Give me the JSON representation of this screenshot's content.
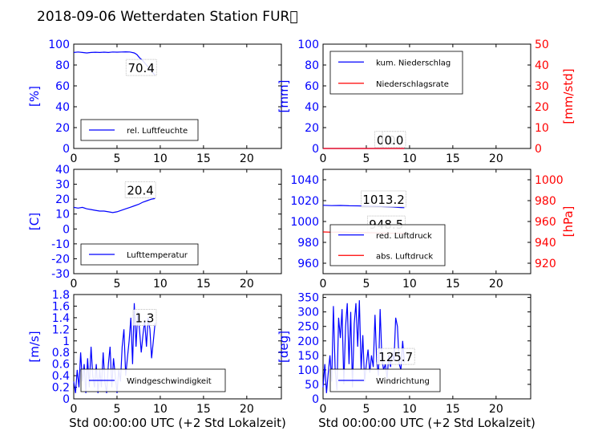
{
  "figure": {
    "title": "2018-09-06 Wetterdaten Station FUR\u0000"
  },
  "chart_data": [
    {
      "type": "line",
      "panel": "top-left",
      "ylabel": "[%]",
      "xlim": [
        0,
        24
      ],
      "ylim": [
        0,
        100
      ],
      "xticks": [
        0,
        5,
        10,
        15,
        20
      ],
      "yticks": [
        0,
        20,
        40,
        60,
        80,
        100
      ],
      "axis_color": "#0000ff",
      "legend_placement": "lower-left",
      "series": [
        {
          "name": "rel. Luftfeuchte",
          "color": "#0000ff",
          "x": [
            0,
            0.5,
            1,
            1.5,
            2,
            2.5,
            3,
            3.5,
            4,
            4.5,
            5,
            5.5,
            6,
            6.5,
            7,
            7.3,
            7.6,
            8,
            8.4,
            8.8,
            9.2,
            9.4
          ],
          "y": [
            92,
            92.5,
            92,
            91.5,
            92,
            92.2,
            92,
            92.3,
            92,
            92.5,
            92.3,
            92.5,
            92.6,
            92.5,
            91.5,
            90,
            87,
            84,
            80,
            76,
            72,
            70.4
          ]
        }
      ],
      "annotations": [
        {
          "text": "70.4",
          "x": 7.8,
          "y": 73
        }
      ]
    },
    {
      "type": "line",
      "panel": "top-right",
      "ylabel": "[mm]",
      "ylabel_right": "[mm/std]",
      "xlim": [
        0,
        24
      ],
      "ylim": [
        0,
        100
      ],
      "ylim_right": [
        0,
        50
      ],
      "xticks": [
        0,
        5,
        10,
        15,
        20
      ],
      "yticks": [
        0,
        20,
        40,
        60,
        80,
        100
      ],
      "yticks_right": [
        0,
        10,
        20,
        30,
        40,
        50
      ],
      "axis_color": "#0000ff",
      "axis_color_right": "#ff0000",
      "legend_placement": "upper-left",
      "series": [
        {
          "name": "kum. Niederschlag",
          "color": "#0000ff",
          "axis": "left",
          "x": [
            0,
            9.4
          ],
          "y": [
            0,
            0
          ]
        },
        {
          "name": "Niederschlagsrate",
          "color": "#ff0000",
          "axis": "right",
          "x": [
            0,
            9.4
          ],
          "y": [
            0,
            0
          ]
        }
      ],
      "annotations": [
        {
          "text": "0.0",
          "x": 7.3,
          "y": 4,
          "axis": "left"
        },
        {
          "text": "0.0",
          "x": 8.2,
          "y": 2,
          "axis": "right"
        }
      ]
    },
    {
      "type": "line",
      "panel": "middle-left",
      "ylabel": "[C]",
      "xlim": [
        0,
        24
      ],
      "ylim": [
        -30,
        40
      ],
      "xticks": [
        0,
        5,
        10,
        15,
        20
      ],
      "yticks": [
        -30,
        -20,
        -10,
        0,
        10,
        20,
        30,
        40
      ],
      "axis_color": "#0000ff",
      "legend_placement": "lower-left",
      "series": [
        {
          "name": "Lufttemperatur",
          "color": "#0000ff",
          "x": [
            0,
            0.5,
            1,
            1.5,
            2,
            2.5,
            3,
            3.5,
            4,
            4.5,
            5,
            5.5,
            6,
            6.5,
            7,
            7.5,
            8,
            8.5,
            9,
            9.4
          ],
          "y": [
            14.5,
            14,
            14.5,
            13.5,
            13,
            12.5,
            12,
            12,
            11.5,
            11,
            11.5,
            12.5,
            13.5,
            14.5,
            15.5,
            16.5,
            18,
            19,
            20,
            20.4
          ]
        }
      ],
      "annotations": [
        {
          "text": "20.4",
          "x": 7.7,
          "y": 23
        }
      ]
    },
    {
      "type": "line",
      "panel": "middle-right",
      "ylabel_right": "[hPa]",
      "xlim": [
        0,
        24
      ],
      "ylim": [
        950,
        1050
      ],
      "ylim_right": [
        910,
        1010
      ],
      "xticks": [
        0,
        5,
        10,
        15,
        20
      ],
      "yticks": [
        960,
        980,
        1000,
        1020,
        1040
      ],
      "yticks_right": [
        920,
        940,
        960,
        980,
        1000
      ],
      "axis_color": "#0000ff",
      "axis_color_right": "#ff0000",
      "legend_placement": "lower-right",
      "series": [
        {
          "name": "red. Luftdruck",
          "color": "#0000ff",
          "axis": "left",
          "x": [
            0,
            1,
            2,
            3,
            4,
            5,
            6,
            7,
            8,
            9,
            9.4
          ],
          "y": [
            1015.5,
            1015.2,
            1015.4,
            1015.1,
            1015,
            1014.8,
            1014.6,
            1014.2,
            1013.9,
            1013.4,
            1013.2
          ]
        },
        {
          "name": "abs. Luftdruck",
          "color": "#ff0000",
          "axis": "right",
          "x": [
            0,
            1,
            2,
            3,
            4,
            5,
            6,
            7,
            8,
            9,
            9.4
          ],
          "y": [
            950,
            949.8,
            949.9,
            949.6,
            949.5,
            949.3,
            949.1,
            948.9,
            948.7,
            948.6,
            948.5
          ]
        }
      ],
      "annotations": [
        {
          "text": "1013.2",
          "x": 7.0,
          "y": 1017,
          "axis": "left"
        },
        {
          "text": "948.5",
          "x": 7.3,
          "y": 953,
          "axis": "right"
        }
      ]
    },
    {
      "type": "line",
      "panel": "bottom-left",
      "ylabel": "[m/s]",
      "xlabel": "Std 00:00:00 UTC (+2 Std Lokalzeit)",
      "xlim": [
        0,
        24
      ],
      "ylim": [
        0,
        1.8
      ],
      "xticks": [
        0,
        5,
        10,
        15,
        20
      ],
      "yticks": [
        0,
        0.2,
        0.4,
        0.6,
        0.8,
        1.0,
        1.2,
        1.4,
        1.6,
        1.8
      ],
      "axis_color": "#0000ff",
      "legend_placement": "lower-center",
      "series": [
        {
          "name": "Windgeschwindigkeit",
          "color": "#0000ff",
          "x": [
            0,
            0.2,
            0.4,
            0.6,
            0.8,
            1.0,
            1.2,
            1.4,
            1.6,
            1.8,
            2.0,
            2.2,
            2.4,
            2.6,
            2.8,
            3.0,
            3.2,
            3.4,
            3.6,
            3.8,
            4.0,
            4.2,
            4.4,
            4.6,
            4.8,
            5.0,
            5.2,
            5.4,
            5.6,
            5.8,
            6.0,
            6.2,
            6.4,
            6.6,
            6.8,
            7.0,
            7.2,
            7.4,
            7.6,
            7.8,
            8.0,
            8.2,
            8.4,
            8.6,
            8.8,
            9.0,
            9.2,
            9.4
          ],
          "y": [
            0.3,
            0.1,
            0.5,
            0.2,
            0.8,
            0.3,
            0.6,
            0.1,
            0.7,
            0.2,
            0.9,
            0.4,
            0.2,
            0.6,
            0.1,
            0.5,
            0.2,
            0.8,
            0.3,
            0.1,
            0.6,
            0.9,
            0.2,
            0.7,
            0.4,
            0.1,
            0.5,
            0.3,
            0.9,
            1.2,
            0.4,
            0.7,
            1.0,
            1.4,
            0.6,
            1.65,
            0.9,
            1.5,
            1.2,
            0.8,
            1.1,
            1.35,
            0.9,
            1.4,
            1.2,
            0.7,
            1.0,
            1.3
          ]
        }
      ],
      "annotations": [
        {
          "text": "1.3",
          "x": 8.2,
          "y": 1.32
        }
      ]
    },
    {
      "type": "line",
      "panel": "bottom-right",
      "ylabel": "[deg]",
      "xlabel": "Std 00:00:00 UTC (+2 Std Lokalzeit)",
      "xlim": [
        0,
        24
      ],
      "ylim": [
        0,
        360
      ],
      "xticks": [
        0,
        5,
        10,
        15,
        20
      ],
      "yticks": [
        0,
        50,
        100,
        150,
        200,
        250,
        300,
        350
      ],
      "axis_color": "#0000ff",
      "legend_placement": "lower-left",
      "series": [
        {
          "name": "Windrichtung",
          "color": "#0000ff",
          "x": [
            0,
            0.2,
            0.4,
            0.6,
            0.8,
            1.0,
            1.2,
            1.4,
            1.6,
            1.8,
            2.0,
            2.2,
            2.4,
            2.6,
            2.8,
            3.0,
            3.2,
            3.4,
            3.6,
            3.8,
            4.0,
            4.2,
            4.4,
            4.6,
            4.8,
            5.0,
            5.2,
            5.4,
            5.6,
            5.8,
            6.0,
            6.2,
            6.4,
            6.6,
            6.8,
            7.0,
            7.2,
            7.4,
            7.6,
            7.8,
            8.0,
            8.2,
            8.4,
            8.6,
            8.8,
            9.0,
            9.2,
            9.4
          ],
          "y": [
            40,
            120,
            20,
            90,
            150,
            60,
            320,
            100,
            30,
            280,
            210,
            310,
            50,
            250,
            330,
            120,
            300,
            40,
            260,
            330,
            180,
            340,
            100,
            220,
            60,
            120,
            170,
            90,
            150,
            110,
            290,
            130,
            80,
            310,
            140,
            100,
            120,
            70,
            150,
            110,
            160,
            130,
            280,
            250,
            120,
            100,
            200,
            125.7
          ]
        }
      ],
      "annotations": [
        {
          "text": "125.7",
          "x": 8.4,
          "y": 130
        }
      ]
    }
  ]
}
